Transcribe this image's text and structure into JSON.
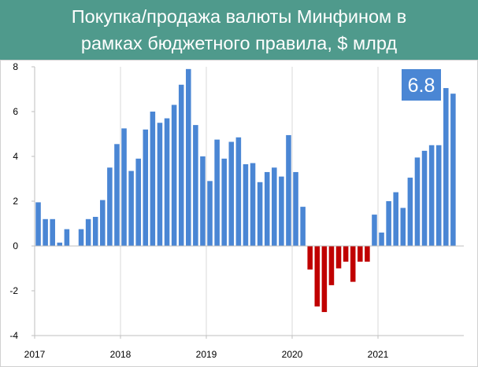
{
  "header": {
    "title_line1": "Покупка/продажа валюты Минфином в",
    "title_line2": "рамках бюджетного правила, $ млрд"
  },
  "colors": {
    "header_bg": "#4f9a8c",
    "positive_bar": "#4a86d4",
    "negative_bar": "#c00000",
    "callout_bg": "#4a86d4",
    "grid": "#d9d9d9"
  },
  "chart_data": {
    "type": "bar",
    "title": "Покупка/продажа валюты Минфином в рамках бюджетного правила, $ млрд",
    "ylim": [
      -4,
      8
    ],
    "yticks": [
      -4,
      -2,
      0,
      2,
      4,
      6,
      8
    ],
    "ytick_labels": [
      "-4",
      "-2",
      "0",
      "2",
      "4",
      "6",
      "8"
    ],
    "xlim": [
      2017,
      2022
    ],
    "xticks": [
      2017,
      2018,
      2019,
      2020,
      2021
    ],
    "xtick_labels": [
      "2017",
      "2018",
      "2019",
      "2020",
      "2021"
    ],
    "grid": "vertical lines at years",
    "annotation": "6.8",
    "series": [
      {
        "months": [
          "2017-02",
          "2017-03",
          "2017-04",
          "2017-05",
          "2017-06",
          "2017-07",
          "2017-08",
          "2017-09",
          "2017-10",
          "2017-11",
          "2017-12",
          "2018-01",
          "2018-02",
          "2018-03",
          "2018-04",
          "2018-05",
          "2018-06",
          "2018-07",
          "2018-08",
          "2018-09",
          "2018-10",
          "2018-11",
          "2018-12",
          "2019-01",
          "2019-02",
          "2019-03",
          "2019-04",
          "2019-05",
          "2019-06",
          "2019-07",
          "2019-08",
          "2019-09",
          "2019-10",
          "2019-11",
          "2019-12",
          "2020-01",
          "2020-02",
          "2020-03",
          "2020-04",
          "2020-05",
          "2020-06",
          "2020-07",
          "2020-08",
          "2020-09",
          "2020-10",
          "2020-11",
          "2020-12",
          "2021-01",
          "2021-02",
          "2021-03",
          "2021-04",
          "2021-05",
          "2021-06",
          "2021-07",
          "2021-08",
          "2021-09",
          "2021-10",
          "2021-11",
          "2021-12"
        ],
        "values": [
          1.95,
          1.2,
          1.2,
          0.15,
          0.75,
          0,
          0.75,
          1.2,
          1.3,
          2.05,
          3.5,
          4.55,
          5.25,
          3.35,
          3.9,
          5.2,
          6.0,
          5.5,
          5.7,
          6.3,
          7.2,
          7.9,
          5.4,
          4.0,
          2.9,
          4.75,
          3.9,
          4.65,
          4.85,
          3.65,
          3.7,
          2.85,
          3.3,
          3.5,
          3.1,
          4.95,
          3.3,
          1.75,
          -1.05,
          -2.7,
          -2.95,
          -1.75,
          -1.0,
          -0.7,
          -1.6,
          -0.7,
          -0.7,
          1.4,
          0.6,
          2.0,
          2.4,
          1.7,
          3.05,
          3.95,
          4.25,
          4.5,
          4.5,
          7.05,
          6.8
        ]
      }
    ]
  }
}
